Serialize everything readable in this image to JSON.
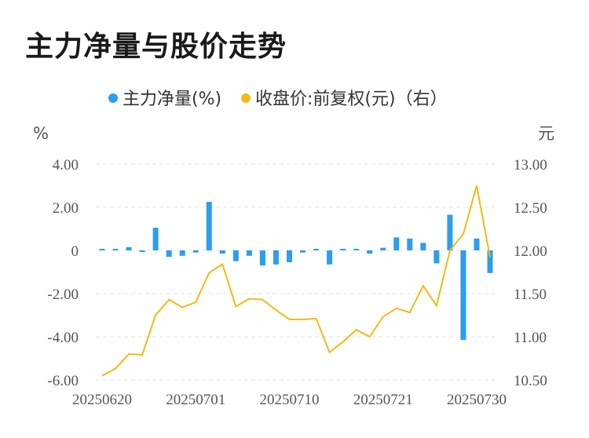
{
  "title": "主力净量与股价走势",
  "chart_data": {
    "type": "bar+line",
    "legend": [
      {
        "name": "主力净量(%)",
        "color": "#2b9ef0"
      },
      {
        "name": "收盘价:前复权(元)（右）",
        "color": "#f5b914"
      }
    ],
    "left_unit": "%",
    "right_unit": "元",
    "left_axis": {
      "min": -6,
      "max": 4,
      "ticks": [
        "4.00",
        "2.00",
        "0",
        "-2.00",
        "-4.00",
        "-6.00"
      ],
      "tick_values": [
        4,
        2,
        0,
        -2,
        -4,
        -6
      ]
    },
    "right_axis": {
      "min": 10.5,
      "max": 13.0,
      "ticks": [
        "13.00",
        "12.50",
        "12.00",
        "11.50",
        "11.00",
        "10.50"
      ],
      "tick_values": [
        13.0,
        12.5,
        12.0,
        11.5,
        11.0,
        10.5
      ]
    },
    "x_labels": [
      "20250620",
      "20250701",
      "20250710",
      "20250721",
      "20250730"
    ],
    "x_label_indices": [
      0,
      7,
      14,
      21,
      28
    ],
    "bar_color": "#2b9ef0",
    "line_color": "#f5b914",
    "series": [
      {
        "name": "主力净量(%)",
        "values": [
          0.05,
          0.05,
          0.15,
          -0.05,
          1.05,
          -0.3,
          -0.25,
          -0.1,
          2.25,
          -0.15,
          -0.5,
          -0.25,
          -0.7,
          -0.65,
          -0.55,
          -0.1,
          0.05,
          -0.65,
          0.0,
          0.05,
          -0.15,
          0.12,
          0.6,
          0.55,
          0.35,
          -0.6,
          1.65,
          -4.15,
          0.55,
          -1.05
        ]
      },
      {
        "name": "收盘价:前复权(元)（右）",
        "values": [
          10.55,
          10.63,
          10.8,
          10.79,
          11.25,
          11.43,
          11.34,
          11.4,
          11.74,
          11.84,
          11.35,
          11.44,
          11.43,
          11.31,
          11.2,
          11.2,
          11.21,
          10.82,
          10.94,
          11.08,
          11.0,
          11.23,
          11.33,
          11.28,
          11.59,
          11.36,
          12.0,
          12.19,
          12.75,
          11.92
        ]
      }
    ]
  }
}
